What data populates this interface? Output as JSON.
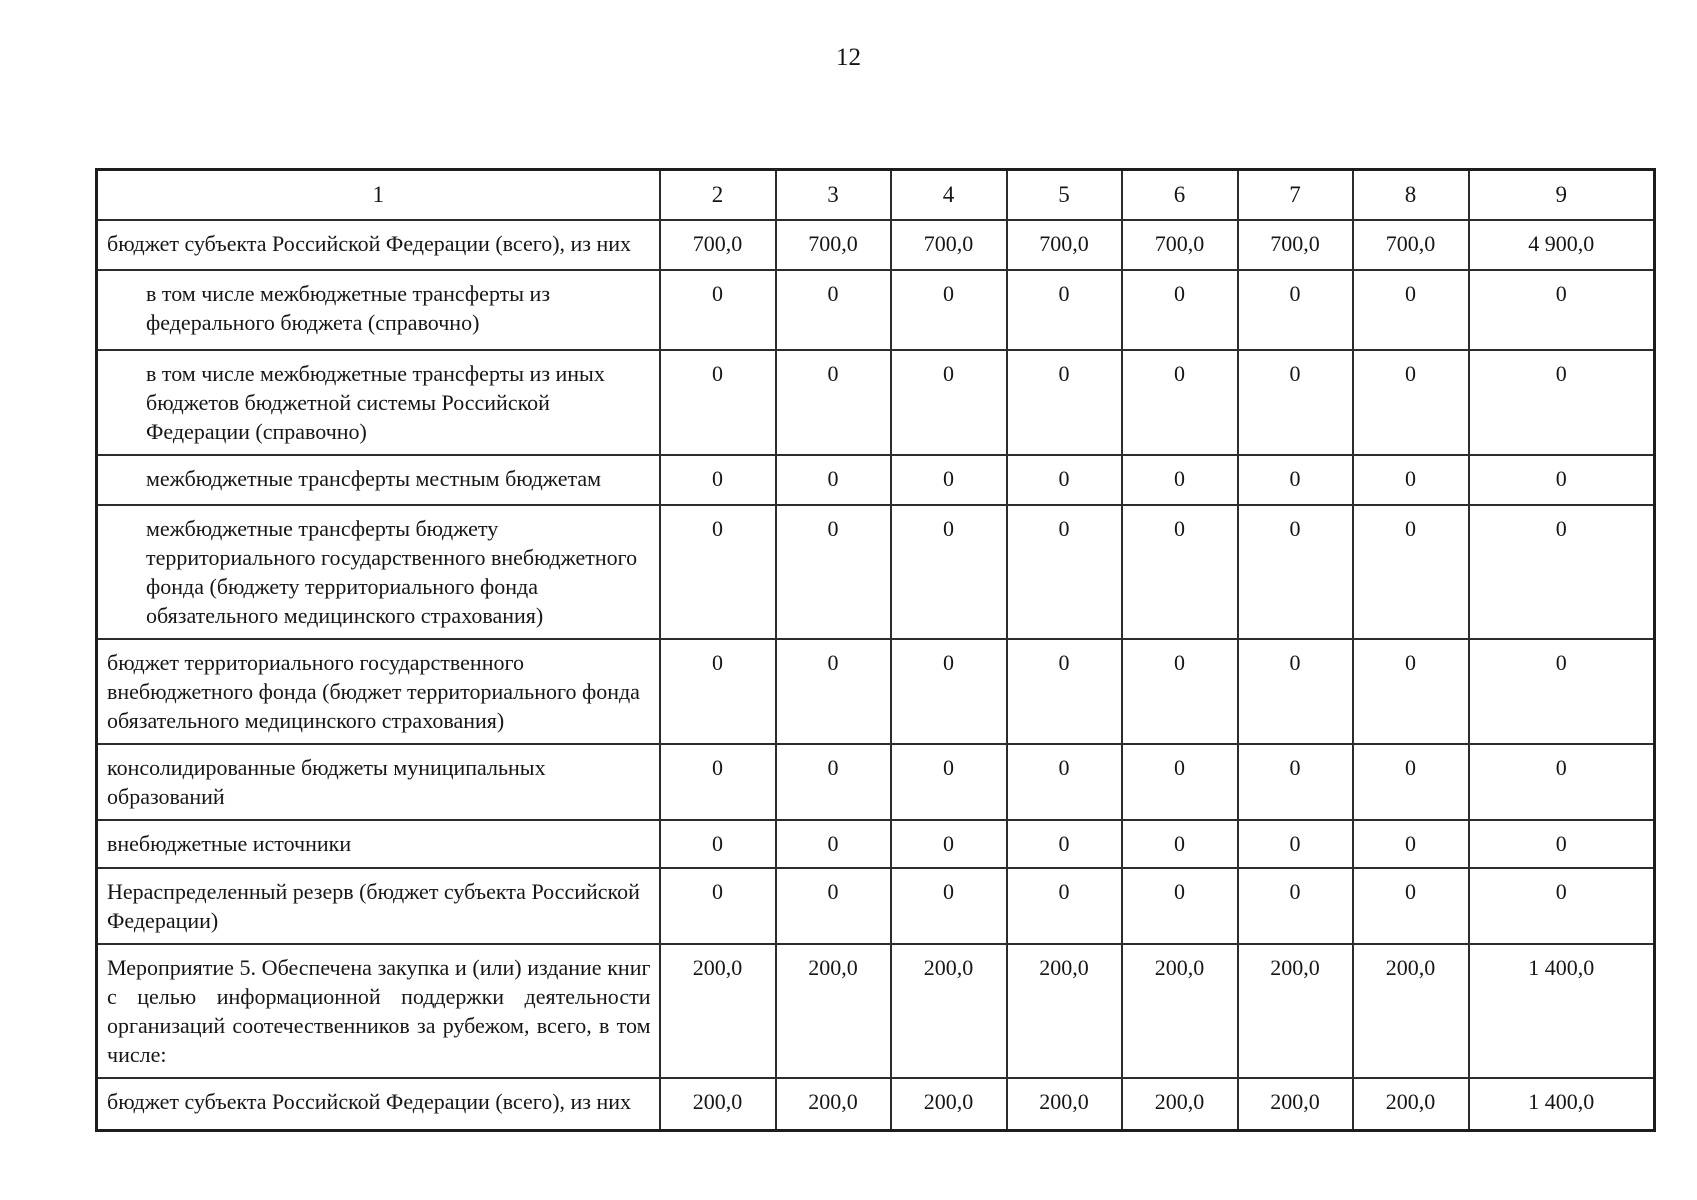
{
  "page": {
    "number": "12"
  },
  "table": {
    "header": [
      "1",
      "2",
      "3",
      "4",
      "5",
      "6",
      "7",
      "8",
      "9"
    ],
    "rows": [
      {
        "label": "бюджет субъекта Российской Федерации (всего), из них",
        "indent": false,
        "values": [
          "700,0",
          "700,0",
          "700,0",
          "700,0",
          "700,0",
          "700,0",
          "700,0",
          "4 900,0"
        ]
      },
      {
        "label": "в том числе межбюджетные трансферты из федерального бюджета (справочно)",
        "indent": true,
        "values": [
          "0",
          "0",
          "0",
          "0",
          "0",
          "0",
          "0",
          "0"
        ]
      },
      {
        "label": "в том числе межбюджетные трансферты из иных бюджетов бюджетной системы Российской Федерации (справочно)",
        "indent": true,
        "values": [
          "0",
          "0",
          "0",
          "0",
          "0",
          "0",
          "0",
          "0"
        ]
      },
      {
        "label": "межбюджетные трансферты местным бюджетам",
        "indent": true,
        "values": [
          "0",
          "0",
          "0",
          "0",
          "0",
          "0",
          "0",
          "0"
        ]
      },
      {
        "label": "межбюджетные трансферты бюджету территориального государственного внебюджетного фонда (бюджету территориального фонда обязательного медицинского страхования)",
        "indent": true,
        "values": [
          "0",
          "0",
          "0",
          "0",
          "0",
          "0",
          "0",
          "0"
        ]
      },
      {
        "label": "бюджет территориального государственного внебюджетного фонда (бюджет территориального фонда обязательного медицинского страхования)",
        "indent": false,
        "values": [
          "0",
          "0",
          "0",
          "0",
          "0",
          "0",
          "0",
          "0"
        ]
      },
      {
        "label": "консолидированные бюджеты муниципальных образований",
        "indent": false,
        "values": [
          "0",
          "0",
          "0",
          "0",
          "0",
          "0",
          "0",
          "0"
        ]
      },
      {
        "label": "внебюджетные источники",
        "indent": false,
        "values": [
          "0",
          "0",
          "0",
          "0",
          "0",
          "0",
          "0",
          "0"
        ]
      },
      {
        "label": "Нераспределенный резерв (бюджет субъекта Российской Федерации)",
        "indent": false,
        "values": [
          "0",
          "0",
          "0",
          "0",
          "0",
          "0",
          "0",
          "0"
        ]
      },
      {
        "label": "Мероприятие 5.  Обеспечена закупка и (или) издание книг с целью информационной поддержки деятельности организаций соотечественников за рубежом, всего, в том числе:",
        "indent": false,
        "values": [
          "200,0",
          "200,0",
          "200,0",
          "200,0",
          "200,0",
          "200,0",
          "200,0",
          "1 400,0"
        ]
      },
      {
        "label": "бюджет субъекта Российской Федерации (всего), из них",
        "indent": false,
        "values": [
          "200,0",
          "200,0",
          "200,0",
          "200,0",
          "200,0",
          "200,0",
          "200,0",
          "1 400,0"
        ]
      }
    ]
  }
}
